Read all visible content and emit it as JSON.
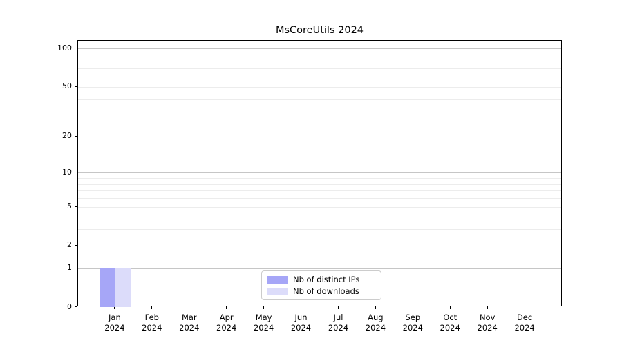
{
  "chart_data": {
    "type": "bar",
    "title": "MsCoreUtils 2024",
    "categories": [
      "Jan 2024",
      "Feb 2024",
      "Mar 2024",
      "Apr 2024",
      "May 2024",
      "Jun 2024",
      "Jul 2024",
      "Aug 2024",
      "Sep 2024",
      "Oct 2024",
      "Nov 2024",
      "Dec 2024"
    ],
    "series": [
      {
        "name": "Nb of distinct IPs",
        "color": "#a6a6f7",
        "values": [
          1,
          0,
          0,
          0,
          0,
          0,
          0,
          0,
          0,
          0,
          0,
          0
        ]
      },
      {
        "name": "Nb of downloads",
        "color": "#dcdcfa",
        "values": [
          1,
          0,
          0,
          0,
          0,
          0,
          0,
          0,
          0,
          0,
          0,
          0
        ]
      }
    ],
    "xlabel": "",
    "ylabel": "",
    "yscale": "log1p",
    "ylim": [
      0,
      115
    ],
    "y_tick_labels": [
      100,
      50,
      20,
      10,
      5,
      2,
      1,
      0
    ],
    "grid": "y-only",
    "grid_major_at_powers_of_ten": true,
    "legend_position": "inside-bottom-center",
    "colors": {
      "major_grid": "#c6c6c6",
      "minor_grid": "#ececec",
      "spine": "#000000",
      "text": "#000000",
      "legend_border": "#cccccc",
      "background": "#ffffff"
    }
  }
}
